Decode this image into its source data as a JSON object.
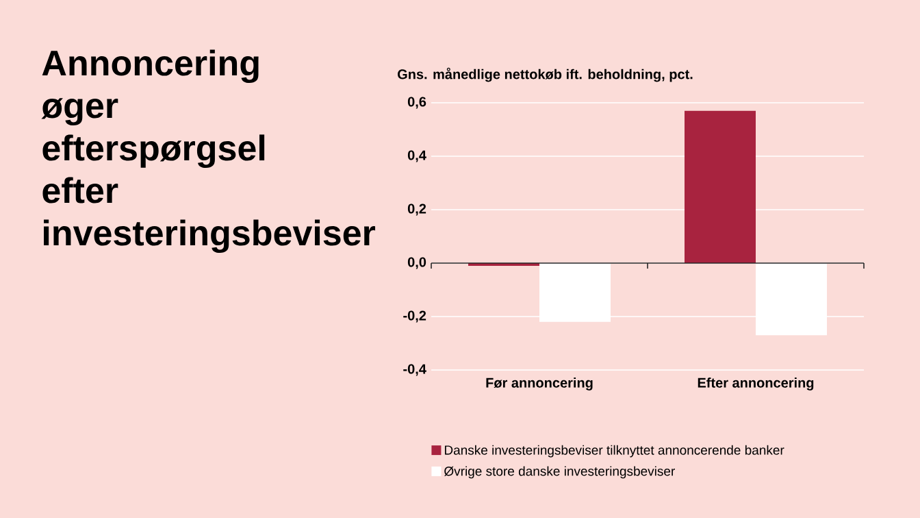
{
  "chart_data": {
    "type": "bar",
    "title": "Annoncering øger efterspørgsel efter investeringsbeviser",
    "ylabel": "Gns. månedlige nettokøb ift. beholdning, pct.",
    "categories": [
      "Før annoncering",
      "Efter annoncering"
    ],
    "series": [
      {
        "name": "Danske investeringsbeviser tilknyttet annoncerende banker",
        "color": "#a8233f",
        "values": [
          -0.01,
          0.57
        ]
      },
      {
        "name": "Øvrige store danske investeringsbeviser",
        "color": "#ffffff",
        "values": [
          -0.22,
          -0.27
        ]
      }
    ],
    "ylim": [
      -0.4,
      0.6
    ],
    "yticks": [
      {
        "value": -0.4,
        "label": "-0,4"
      },
      {
        "value": -0.2,
        "label": "-0,2"
      },
      {
        "value": 0,
        "label": "0,0"
      },
      {
        "value": 0.2,
        "label": "0,2"
      },
      {
        "value": 0.4,
        "label": "0,4"
      },
      {
        "value": 0.6,
        "label": "0,6"
      }
    ],
    "grid": "y",
    "legend": "bottom"
  }
}
